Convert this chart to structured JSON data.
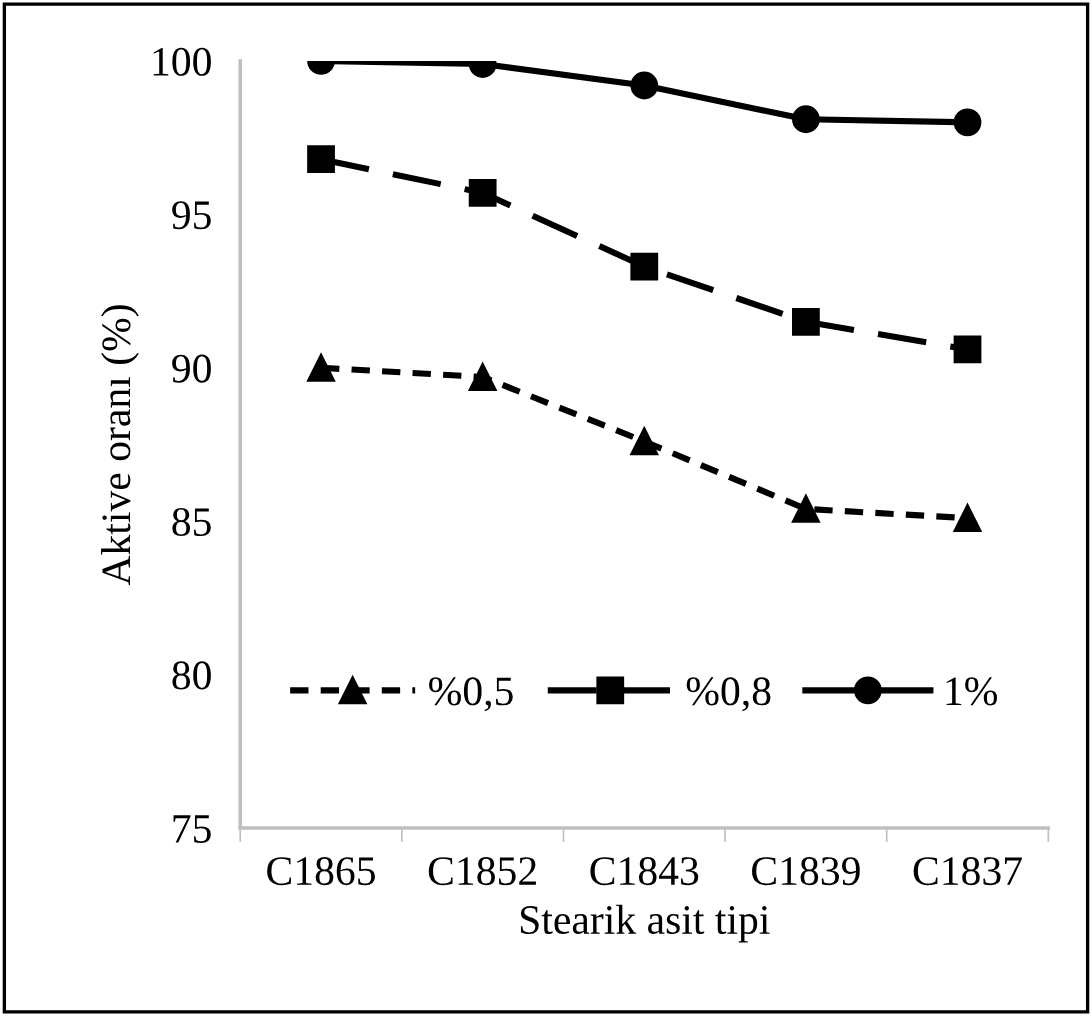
{
  "chart_data": {
    "type": "line",
    "xlabel": "Stearik asit tipi",
    "ylabel": "Aktive oranı (%)",
    "categories": [
      "C1865",
      "C1852",
      "C1843",
      "C1839",
      "C1837"
    ],
    "series": [
      {
        "name": "%0,5",
        "color": "#000000",
        "marker": "triangle",
        "line_style": "dotted",
        "values": [
          90.0,
          89.7,
          87.6,
          85.4,
          85.1
        ]
      },
      {
        "name": "%0,8",
        "color": "#000000",
        "marker": "square",
        "line_style": "dashed",
        "values": [
          96.8,
          95.7,
          93.3,
          91.5,
          90.6
        ]
      },
      {
        "name": "1%",
        "color": "#000000",
        "marker": "circle",
        "line_style": "solid",
        "values": [
          100.0,
          99.9,
          99.2,
          98.1,
          98.0
        ]
      }
    ],
    "ylim": [
      75,
      100
    ],
    "yticks": [
      75,
      80,
      85,
      90,
      95,
      100
    ],
    "grid": false,
    "legend": "bottom"
  }
}
